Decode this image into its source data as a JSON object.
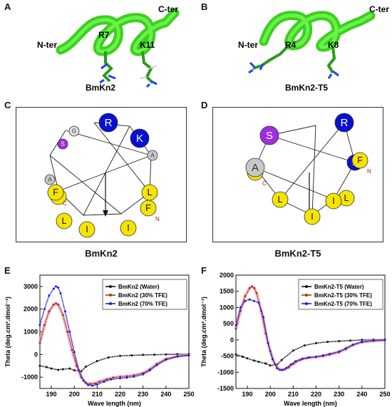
{
  "figure": {
    "panel_letters": [
      "A",
      "B",
      "C",
      "D",
      "E",
      "F"
    ],
    "structures": [
      {
        "name": "BmKn2",
        "n_term": "N-ter",
        "c_term": "C-ter",
        "residues": [
          "R7",
          "K11"
        ]
      },
      {
        "name": "BmKn2-T5",
        "n_term": "N-ter",
        "c_term": "C-ter",
        "residues": [
          "R4",
          "K8"
        ]
      }
    ],
    "wheels": [
      {
        "name": "BmKn2",
        "residues": [
          {
            "label": "R",
            "color": "#0a10d0",
            "text_color": "#ffffff",
            "size": "big"
          },
          {
            "label": "K",
            "color": "#0a10d0",
            "text_color": "#ffffff",
            "size": "big"
          },
          {
            "label": "A",
            "color": "#c8c8c8",
            "text_color": "#333333",
            "size": "small"
          },
          {
            "label": "L",
            "color": "#f5e400",
            "text_color": "#111111",
            "size": "mid"
          },
          {
            "label": "F",
            "color": "#f5e400",
            "text_color": "#111111",
            "size": "mid",
            "tag": "N"
          },
          {
            "label": "I",
            "color": "#f5e400",
            "text_color": "#111111",
            "size": "mid"
          },
          {
            "label": "I",
            "color": "#f5e400",
            "text_color": "#111111",
            "size": "mid"
          },
          {
            "label": "L",
            "color": "#f5e400",
            "text_color": "#111111",
            "size": "mid"
          },
          {
            "label": "I",
            "color": "#f5e400",
            "text_color": "#111111",
            "size": "mid"
          },
          {
            "label": "F",
            "color": "#f5e400",
            "text_color": "#111111",
            "size": "mid",
            "tag": "C"
          },
          {
            "label": "A",
            "color": "#c8c8c8",
            "text_color": "#333333",
            "size": "small"
          },
          {
            "label": "S",
            "color": "#9b30e0",
            "text_color": "#ffffff",
            "size": "small"
          },
          {
            "label": "G",
            "color": "#dedede",
            "text_color": "#333333",
            "size": "small"
          }
        ]
      },
      {
        "name": "BmKn2-T5",
        "residues": [
          {
            "label": "R",
            "color": "#0a10d0",
            "text_color": "#ffffff",
            "size": "big"
          },
          {
            "label": "K",
            "color": "#0a10d0",
            "text_color": "#ffffff",
            "size": "mid"
          },
          {
            "label": "F",
            "color": "#f5e400",
            "text_color": "#111111",
            "size": "mid",
            "tag": "N"
          },
          {
            "label": "L",
            "color": "#f5e400",
            "text_color": "#111111",
            "size": "mid"
          },
          {
            "label": "I",
            "color": "#f5e400",
            "text_color": "#111111",
            "size": "mid"
          },
          {
            "label": "I",
            "color": "#f5e400",
            "text_color": "#111111",
            "size": "mid"
          },
          {
            "label": "L",
            "color": "#f5e400",
            "text_color": "#111111",
            "size": "mid"
          },
          {
            "label": "F",
            "color": "#f5e400",
            "text_color": "#111111",
            "size": "mid",
            "tag": "C"
          },
          {
            "label": "A",
            "color": "#c8c8c8",
            "text_color": "#333333",
            "size": "big"
          },
          {
            "label": "S",
            "color": "#9b30e0",
            "text_color": "#ffffff",
            "size": "big"
          }
        ]
      }
    ]
  },
  "chart_data": [
    {
      "type": "line",
      "panel": "E",
      "xlabel": "Wave length (nm)",
      "ylabel": "Theta (deg.cm².dmol⁻¹)",
      "xlim": [
        185,
        250
      ],
      "ylim": [
        -1500,
        3500
      ],
      "xticks": [
        190,
        200,
        210,
        220,
        230,
        240,
        250
      ],
      "yticks": [
        -1000,
        0,
        1000,
        2000,
        3000
      ],
      "legend_position": "top-right",
      "series": [
        {
          "name": "BmKn2 (Water)",
          "color": "#111111",
          "x": [
            185,
            188,
            190,
            193,
            195,
            198,
            200,
            203,
            205,
            210,
            215,
            220,
            225,
            230,
            235,
            240,
            245,
            250
          ],
          "y": [
            -500,
            -560,
            -620,
            -680,
            -650,
            -620,
            -700,
            -750,
            -540,
            -290,
            -130,
            -60,
            -40,
            -20,
            -10,
            0,
            10,
            20
          ]
        },
        {
          "name": "BmKn2 (30% TFE)",
          "color": "#b0321e",
          "x": [
            185,
            187,
            189,
            191,
            192,
            193,
            195,
            197,
            199,
            201,
            203,
            205,
            207,
            209,
            211,
            214,
            217,
            220,
            223,
            226,
            230,
            233,
            236,
            240,
            245,
            250
          ],
          "y": [
            500,
            1300,
            1900,
            2200,
            2250,
            2200,
            1750,
            1000,
            200,
            -500,
            -1000,
            -1250,
            -1300,
            -1280,
            -1200,
            -1100,
            -1020,
            -980,
            -960,
            -920,
            -820,
            -650,
            -420,
            -200,
            -80,
            -30
          ]
        },
        {
          "name": "BmKn2 (70% TFE)",
          "color": "#1a1ae6",
          "x": [
            185,
            187,
            189,
            191,
            192,
            193,
            194,
            196,
            198,
            200,
            202,
            204,
            206,
            208,
            210,
            213,
            216,
            220,
            223,
            226,
            230,
            233,
            236,
            240,
            245,
            250
          ],
          "y": [
            1300,
            2000,
            2600,
            2900,
            3000,
            2950,
            2700,
            1900,
            1000,
            100,
            -700,
            -1150,
            -1350,
            -1380,
            -1320,
            -1200,
            -1100,
            -1050,
            -1020,
            -980,
            -880,
            -700,
            -470,
            -230,
            -90,
            -40
          ]
        }
      ]
    },
    {
      "type": "line",
      "panel": "F",
      "xlabel": "Wave length (nm)",
      "ylabel": "Theta (deg.cm².dmol⁻¹)",
      "xlim": [
        185,
        250
      ],
      "ylim": [
        -1500,
        2000
      ],
      "xticks": [
        190,
        200,
        210,
        220,
        230,
        240,
        250
      ],
      "yticks": [
        -1500,
        -1000,
        -500,
        0,
        500,
        1000,
        1500,
        2000
      ],
      "legend_position": "top-right",
      "series": [
        {
          "name": "BmKn2-T5 (Water)",
          "color": "#111111",
          "x": [
            185,
            188,
            190,
            193,
            195,
            198,
            200,
            203,
            205,
            210,
            215,
            220,
            225,
            230,
            235,
            240,
            245,
            250
          ],
          "y": [
            -450,
            -520,
            -570,
            -640,
            -680,
            -730,
            -790,
            -760,
            -620,
            -330,
            -170,
            -100,
            -60,
            -40,
            -20,
            0,
            10,
            10
          ]
        },
        {
          "name": "BmKn2-T5 (30% TFE)",
          "color": "#b0321e",
          "x": [
            185,
            187,
            189,
            191,
            192,
            193,
            194,
            196,
            198,
            200,
            202,
            204,
            206,
            208,
            210,
            213,
            216,
            220,
            223,
            226,
            230,
            233,
            236,
            240,
            245,
            250
          ],
          "y": [
            350,
            900,
            1350,
            1600,
            1650,
            1600,
            1450,
            900,
            200,
            -350,
            -750,
            -920,
            -920,
            -850,
            -740,
            -620,
            -560,
            -530,
            -500,
            -450,
            -380,
            -280,
            -160,
            -70,
            -30,
            -10
          ]
        },
        {
          "name": "BmKn2-T5 (70% TFE)",
          "color": "#1a1ae6",
          "x": [
            185,
            187,
            189,
            191,
            193,
            195,
            197,
            199,
            201,
            203,
            205,
            207,
            209,
            211,
            214,
            217,
            220,
            223,
            226,
            230,
            233,
            236,
            240,
            245,
            250
          ],
          "y": [
            450,
            1000,
            1200,
            1250,
            1200,
            1150,
            700,
            -100,
            -600,
            -880,
            -930,
            -870,
            -760,
            -660,
            -580,
            -540,
            -520,
            -480,
            -430,
            -360,
            -260,
            -150,
            -60,
            -20,
            -10
          ]
        }
      ]
    }
  ]
}
